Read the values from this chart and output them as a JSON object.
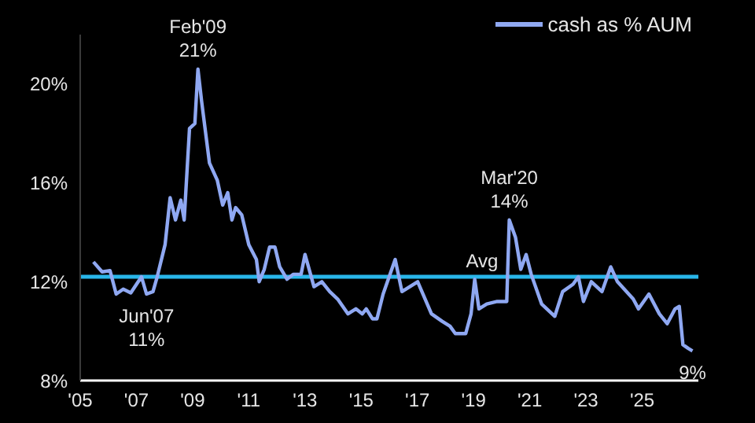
{
  "chart_data": {
    "type": "line",
    "x": [
      2005.47,
      2005.78,
      2006.06,
      2006.28,
      2006.53,
      2006.8,
      2007.18,
      2007.36,
      2007.59,
      2007.74,
      2008.02,
      2008.2,
      2008.39,
      2008.58,
      2008.7,
      2008.89,
      2009.08,
      2009.19,
      2009.32,
      2009.6,
      2009.88,
      2010.07,
      2010.25,
      2010.4,
      2010.53,
      2010.75,
      2011.0,
      2011.27,
      2011.37,
      2011.55,
      2011.74,
      2011.93,
      2012.1,
      2012.36,
      2012.58,
      2012.86,
      2013.0,
      2013.32,
      2013.6,
      2013.88,
      2014.16,
      2014.53,
      2014.81,
      2015.04,
      2015.18,
      2015.4,
      2015.56,
      2015.78,
      2016.21,
      2016.45,
      2017.01,
      2017.5,
      2017.88,
      2018.16,
      2018.35,
      2018.72,
      2018.91,
      2019.04,
      2019.19,
      2019.47,
      2019.84,
      2020.18,
      2020.27,
      2020.49,
      2020.68,
      2020.87,
      2021.05,
      2021.42,
      2021.89,
      2022.17,
      2022.54,
      2022.73,
      2022.91,
      2023.19,
      2023.57,
      2023.88,
      2024.12,
      2024.68,
      2024.87,
      2025.24,
      2025.61,
      2025.89,
      2026.17,
      2026.32,
      2026.45,
      2026.64,
      2026.79
    ],
    "series": [
      {
        "name": "cash as % AUM",
        "color": "#8fa8f2",
        "values": [
          12.8,
          12.4,
          12.45,
          11.5,
          11.7,
          11.55,
          12.2,
          11.5,
          11.6,
          12.2,
          13.5,
          15.4,
          14.5,
          15.3,
          14.5,
          18.2,
          18.4,
          20.6,
          19.3,
          16.8,
          16.1,
          15.1,
          15.6,
          14.5,
          15.0,
          14.7,
          13.5,
          12.9,
          12.0,
          12.5,
          13.4,
          13.4,
          12.6,
          12.1,
          12.3,
          12.3,
          13.1,
          11.8,
          12.0,
          11.6,
          11.3,
          10.7,
          10.9,
          10.7,
          10.9,
          10.5,
          10.5,
          11.5,
          12.9,
          11.6,
          12.0,
          10.7,
          10.4,
          10.2,
          9.9,
          9.9,
          10.7,
          12.1,
          10.9,
          11.1,
          11.2,
          11.2,
          14.5,
          13.8,
          12.5,
          13.1,
          12.3,
          11.1,
          10.6,
          11.6,
          11.9,
          12.2,
          11.2,
          12.0,
          11.6,
          12.6,
          12.0,
          11.3,
          10.9,
          11.5,
          10.7,
          10.3,
          10.9,
          11.0,
          9.45,
          9.3,
          9.2
        ]
      }
    ],
    "xlim": [
      2005,
      2027
    ],
    "xticks": [
      {
        "value": 2005,
        "label": "'05"
      },
      {
        "value": 2007,
        "label": "'07"
      },
      {
        "value": 2009,
        "label": "'09"
      },
      {
        "value": 2011,
        "label": "'11"
      },
      {
        "value": 2013,
        "label": "'13"
      },
      {
        "value": 2015,
        "label": "'15"
      },
      {
        "value": 2017,
        "label": "'17"
      },
      {
        "value": 2019,
        "label": "'19"
      },
      {
        "value": 2021,
        "label": "'21"
      },
      {
        "value": 2023,
        "label": "'23"
      },
      {
        "value": 2025,
        "label": "'25"
      }
    ],
    "ylim": [
      8,
      22
    ],
    "yticks": [
      {
        "value": 8,
        "label": "8%"
      },
      {
        "value": 12,
        "label": "12%"
      },
      {
        "value": 16,
        "label": "16%"
      },
      {
        "value": 20,
        "label": "20%"
      }
    ],
    "ref_lines": [
      {
        "axis": "y",
        "value": 12.2,
        "label": "Avg",
        "color": "#29b6ea"
      }
    ],
    "annotations": [
      {
        "text": "Feb'09\n21%",
        "x": 2009.19,
        "y": 20.6
      },
      {
        "text": "Jun'07\n11%",
        "x": 2007.36,
        "y": 11.5
      },
      {
        "text": "Mar'20\n14%",
        "x": 2020.27,
        "y": 14.5
      },
      {
        "text": "9%",
        "x": 2026.79,
        "y": 9.2
      }
    ],
    "grid": false,
    "legend": "top right",
    "marker": "none",
    "line_style": "solid"
  }
}
